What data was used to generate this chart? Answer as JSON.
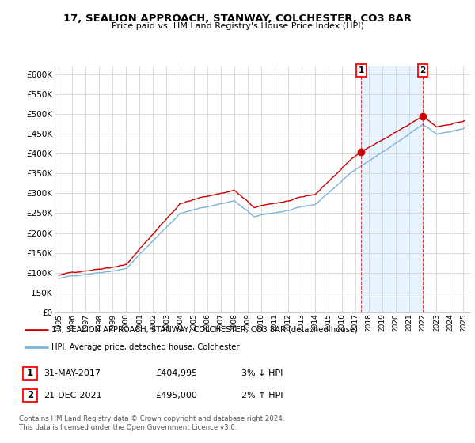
{
  "title": "17, SEALION APPROACH, STANWAY, COLCHESTER, CO3 8AR",
  "subtitle": "Price paid vs. HM Land Registry's House Price Index (HPI)",
  "legend_line1": "17, SEALION APPROACH, STANWAY, COLCHESTER, CO3 8AR (detached house)",
  "legend_line2": "HPI: Average price, detached house, Colchester",
  "footer": "Contains HM Land Registry data © Crown copyright and database right 2024.\nThis data is licensed under the Open Government Licence v3.0.",
  "price_color": "#cc0000",
  "hpi_color": "#7db4d8",
  "shade_color": "#ddeeff",
  "ylim": [
    0,
    620000
  ],
  "ytick_labels": [
    "£0",
    "£50K",
    "£100K",
    "£150K",
    "£200K",
    "£250K",
    "£300K",
    "£350K",
    "£400K",
    "£450K",
    "£500K",
    "£550K",
    "£600K"
  ],
  "ytick_values": [
    0,
    50000,
    100000,
    150000,
    200000,
    250000,
    300000,
    350000,
    400000,
    450000,
    500000,
    550000,
    600000
  ],
  "sale1_date": 2017.42,
  "sale1_value": 404995,
  "sale1_label": "1",
  "sale1_text_date": "31-MAY-2017",
  "sale1_text_price": "£404,995",
  "sale1_text_hpi": "3% ↓ HPI",
  "sale2_date": 2021.97,
  "sale2_value": 495000,
  "sale2_label": "2",
  "sale2_text_date": "21-DEC-2021",
  "sale2_text_price": "£495,000",
  "sale2_text_hpi": "2% ↑ HPI",
  "background_color": "#ffffff",
  "plot_bg_color": "#ffffff"
}
